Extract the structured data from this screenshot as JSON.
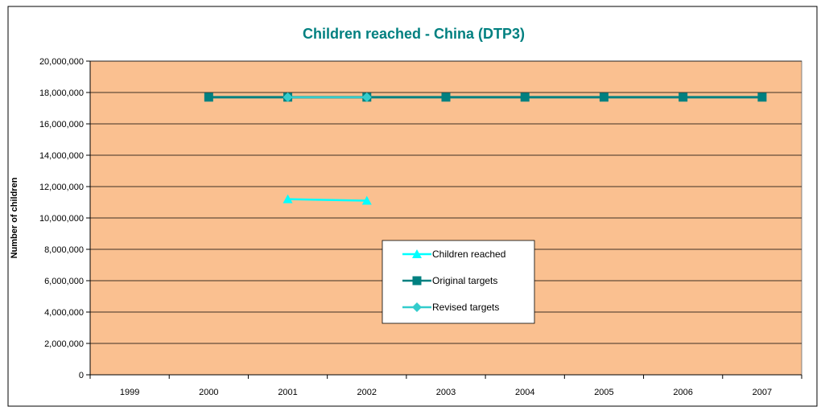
{
  "chart_data": {
    "type": "line",
    "title": "Children reached - China (DTP3)",
    "ylabel": "Number of children",
    "xlabel": "",
    "categories": [
      "1999",
      "2000",
      "2001",
      "2002",
      "2003",
      "2004",
      "2005",
      "2006",
      "2007"
    ],
    "ylim": [
      0,
      20000000
    ],
    "yticks": [
      0,
      2000000,
      4000000,
      6000000,
      8000000,
      10000000,
      12000000,
      14000000,
      16000000,
      18000000,
      20000000
    ],
    "ytick_labels": [
      "0",
      "2,000,000",
      "4,000,000",
      "6,000,000",
      "8,000,000",
      "10,000,000",
      "12,000,000",
      "14,000,000",
      "16,000,000",
      "18,000,000",
      "20,000,000"
    ],
    "grid": true,
    "legend_position": "center",
    "plot_background": "#FAC090",
    "series": [
      {
        "name": "Children reached",
        "color": "#00FFFF",
        "marker": "triangle",
        "values": [
          null,
          null,
          11200000,
          11100000,
          null,
          null,
          null,
          null,
          null
        ]
      },
      {
        "name": "Original targets",
        "color": "#008080",
        "marker": "square",
        "values": [
          null,
          17700000,
          17700000,
          17700000,
          17700000,
          17700000,
          17700000,
          17700000,
          17700000
        ]
      },
      {
        "name": "Revised targets",
        "color": "#33CCCC",
        "marker": "diamond",
        "values": [
          null,
          null,
          17700000,
          17700000,
          null,
          null,
          null,
          null,
          null
        ]
      }
    ]
  }
}
